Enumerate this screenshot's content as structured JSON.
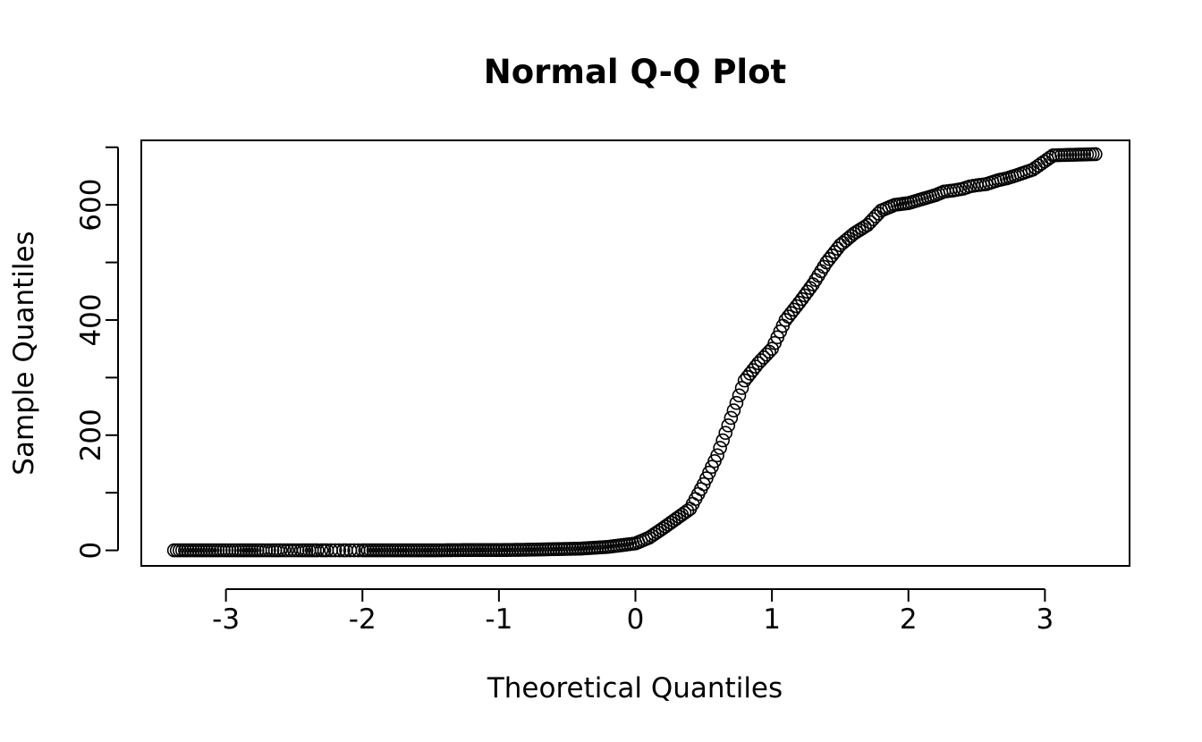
{
  "chart_data": {
    "type": "scatter",
    "title": "Normal Q-Q Plot",
    "xlabel": "Theoretical Quantiles",
    "ylabel": "Sample Quantiles",
    "xlim": [
      -3.62,
      3.62
    ],
    "ylim": [
      -27,
      712
    ],
    "grid": false,
    "xticks": [
      -3,
      -2,
      -1,
      0,
      1,
      2,
      3
    ],
    "yticks": [
      0,
      100,
      200,
      300,
      400,
      500,
      600,
      700
    ],
    "ytick_labels": [
      "0",
      "200",
      "400",
      "600"
    ],
    "series": [
      {
        "marker": "open-circle",
        "color": "#000000",
        "points": [
          [
            -3.38,
            0
          ],
          [
            -3.06,
            0
          ],
          [
            -2.91,
            0
          ],
          [
            -2.81,
            0
          ],
          [
            -2.73,
            0
          ],
          [
            -2.66,
            0
          ],
          [
            -2.6,
            0
          ],
          [
            -2.55,
            0
          ],
          [
            -2.5,
            0
          ],
          [
            -2.45,
            0
          ],
          [
            -2.41,
            0
          ],
          [
            -2.37,
            0
          ],
          [
            -2.33,
            0
          ],
          [
            -2.3,
            0
          ],
          [
            -2.26,
            0
          ],
          [
            -2.23,
            0
          ],
          [
            -2.2,
            0
          ],
          [
            -2.17,
            0
          ],
          [
            -2.14,
            0
          ],
          [
            -2.12,
            0
          ],
          [
            -2.09,
            0
          ],
          [
            -2.06,
            0
          ],
          [
            -2.03,
            0
          ],
          [
            -2.0,
            0
          ],
          [
            -1.8,
            0
          ],
          [
            -1.5,
            0
          ],
          [
            -1.2,
            0.5
          ],
          [
            -1.0,
            0.5
          ],
          [
            -0.8,
            1
          ],
          [
            -0.6,
            2
          ],
          [
            -0.4,
            3
          ],
          [
            -0.2,
            6
          ],
          [
            0.0,
            12
          ],
          [
            0.1,
            22
          ],
          [
            0.2,
            38
          ],
          [
            0.3,
            55
          ],
          [
            0.4,
            72
          ],
          [
            0.5,
            115
          ],
          [
            0.6,
            165
          ],
          [
            0.7,
            230
          ],
          [
            0.8,
            295
          ],
          [
            0.9,
            325
          ],
          [
            1.0,
            350
          ],
          [
            1.1,
            400
          ],
          [
            1.2,
            430
          ],
          [
            1.3,
            462
          ],
          [
            1.4,
            500
          ],
          [
            1.5,
            530
          ],
          [
            1.6,
            550
          ],
          [
            1.7,
            565
          ],
          [
            1.8,
            590
          ],
          [
            1.9,
            600
          ],
          [
            2.0,
            603
          ],
          [
            2.1,
            610
          ],
          [
            2.2,
            617
          ],
          [
            2.26,
            623
          ],
          [
            2.33,
            625
          ],
          [
            2.4,
            628
          ],
          [
            2.45,
            632
          ],
          [
            2.5,
            634
          ],
          [
            2.57,
            636
          ],
          [
            2.66,
            643
          ],
          [
            2.72,
            646
          ],
          [
            2.8,
            652
          ],
          [
            2.91,
            661
          ],
          [
            3.06,
            686
          ],
          [
            3.37,
            688
          ]
        ]
      }
    ]
  }
}
